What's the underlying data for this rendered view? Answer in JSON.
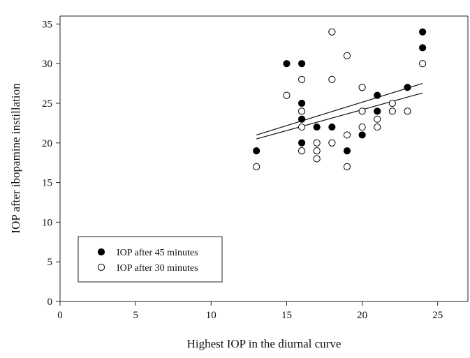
{
  "chart_data": {
    "type": "scatter",
    "title": "",
    "xlabel": "Highest IOP in the diurnal curve",
    "ylabel": "IOP after ibopamine instillation",
    "xlim": [
      0,
      27
    ],
    "ylim": [
      0,
      36
    ],
    "xticks": [
      "0",
      "5",
      "10",
      "15",
      "20",
      "25"
    ],
    "yticks": [
      "0",
      "5",
      "10",
      "15",
      "20",
      "25",
      "30",
      "35"
    ],
    "grid": false,
    "legend_position": "bottom-left",
    "series": [
      {
        "name": "IOP after 45 minutes",
        "marker": "filled-circle",
        "points": [
          [
            13,
            19
          ],
          [
            15,
            30
          ],
          [
            16,
            30
          ],
          [
            16,
            25
          ],
          [
            16,
            23
          ],
          [
            16,
            20
          ],
          [
            17,
            22
          ],
          [
            18,
            22
          ],
          [
            19,
            19
          ],
          [
            20,
            21
          ],
          [
            21,
            26
          ],
          [
            21,
            24
          ],
          [
            23,
            27
          ],
          [
            24,
            34
          ],
          [
            24,
            32
          ]
        ],
        "trendline": [
          [
            13,
            21
          ],
          [
            24,
            27.5
          ]
        ]
      },
      {
        "name": "IOP after 30 minutes",
        "marker": "open-circle",
        "points": [
          [
            13,
            17
          ],
          [
            15,
            26
          ],
          [
            16,
            28
          ],
          [
            16,
            24
          ],
          [
            16,
            22
          ],
          [
            16,
            19
          ],
          [
            17,
            20
          ],
          [
            17,
            19
          ],
          [
            17,
            18
          ],
          [
            18,
            34
          ],
          [
            18,
            28
          ],
          [
            18,
            20
          ],
          [
            19,
            31
          ],
          [
            19,
            21
          ],
          [
            19,
            17
          ],
          [
            20,
            27
          ],
          [
            20,
            24
          ],
          [
            20,
            22
          ],
          [
            21,
            23
          ],
          [
            21,
            22
          ],
          [
            22,
            25
          ],
          [
            22,
            24
          ],
          [
            23,
            24
          ],
          [
            24,
            30
          ]
        ],
        "trendline": [
          [
            13,
            20.5
          ],
          [
            24,
            26.3
          ]
        ]
      }
    ]
  }
}
